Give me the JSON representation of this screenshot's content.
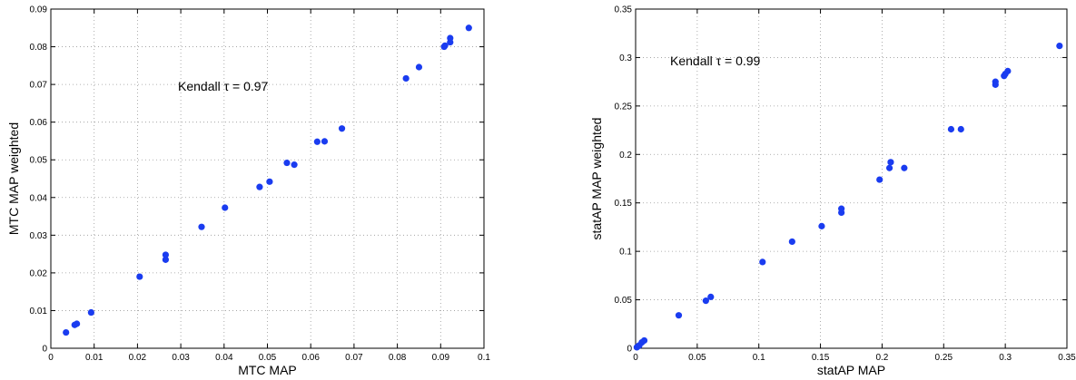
{
  "chart_data": [
    {
      "type": "scatter",
      "xlabel": "MTC MAP",
      "ylabel": "MTC MAP weighted",
      "annotation": "Kendall τ = 0.97",
      "xlim": [
        0,
        0.1
      ],
      "ylim": [
        0,
        0.09
      ],
      "xticks": [
        "0",
        "0.01",
        "0.02",
        "0.03",
        "0.04",
        "0.05",
        "0.06",
        "0.07",
        "0.08",
        "0.09",
        "0.1"
      ],
      "yticks": [
        "0",
        "0.01",
        "0.02",
        "0.03",
        "0.04",
        "0.05",
        "0.06",
        "0.07",
        "0.08",
        "0.09"
      ],
      "grid": true,
      "marker_color": "#1a3cf0",
      "points": [
        [
          0.0035,
          0.0042
        ],
        [
          0.0055,
          0.0062
        ],
        [
          0.006,
          0.0065
        ],
        [
          0.0093,
          0.0095
        ],
        [
          0.0205,
          0.019
        ],
        [
          0.0265,
          0.0235
        ],
        [
          0.0265,
          0.0248
        ],
        [
          0.0348,
          0.0322
        ],
        [
          0.0402,
          0.0373
        ],
        [
          0.0482,
          0.0428
        ],
        [
          0.0505,
          0.0442
        ],
        [
          0.0545,
          0.0492
        ],
        [
          0.0562,
          0.0487
        ],
        [
          0.0615,
          0.0548
        ],
        [
          0.0632,
          0.0549
        ],
        [
          0.0672,
          0.0583
        ],
        [
          0.082,
          0.0716
        ],
        [
          0.085,
          0.0746
        ],
        [
          0.0908,
          0.08
        ],
        [
          0.091,
          0.0803
        ],
        [
          0.0922,
          0.0812
        ],
        [
          0.0922,
          0.0823
        ],
        [
          0.0965,
          0.085
        ]
      ]
    },
    {
      "type": "scatter",
      "xlabel": "statAP MAP",
      "ylabel": "statAP MAP weighted",
      "annotation": "Kendall τ = 0.99",
      "xlim": [
        0,
        0.35
      ],
      "ylim": [
        0,
        0.35
      ],
      "xticks": [
        "0",
        "0.05",
        "0.1",
        "0.15",
        "0.2",
        "0.25",
        "0.3",
        "0.35"
      ],
      "yticks": [
        "0",
        "0.05",
        "0.1",
        "0.15",
        "0.2",
        "0.25",
        "0.3",
        "0.35"
      ],
      "grid": true,
      "marker_color": "#1a3cf0",
      "points": [
        [
          0.001,
          0.001
        ],
        [
          0.002,
          0.002
        ],
        [
          0.003,
          0.003
        ],
        [
          0.005,
          0.006
        ],
        [
          0.007,
          0.008
        ],
        [
          0.035,
          0.034
        ],
        [
          0.057,
          0.049
        ],
        [
          0.061,
          0.053
        ],
        [
          0.103,
          0.089
        ],
        [
          0.127,
          0.11
        ],
        [
          0.151,
          0.126
        ],
        [
          0.167,
          0.14
        ],
        [
          0.167,
          0.144
        ],
        [
          0.198,
          0.174
        ],
        [
          0.206,
          0.186
        ],
        [
          0.207,
          0.192
        ],
        [
          0.218,
          0.186
        ],
        [
          0.256,
          0.226
        ],
        [
          0.264,
          0.226
        ],
        [
          0.292,
          0.272
        ],
        [
          0.292,
          0.275
        ],
        [
          0.299,
          0.281
        ],
        [
          0.3,
          0.283
        ],
        [
          0.302,
          0.286
        ],
        [
          0.344,
          0.312
        ]
      ]
    }
  ]
}
